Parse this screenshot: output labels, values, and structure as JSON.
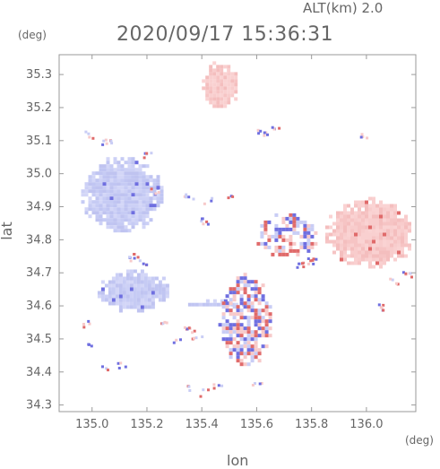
{
  "header": {
    "alt_label": "ALT(km) 2.0",
    "timestamp": "2020/09/17 15:36:31"
  },
  "chart_data": {
    "type": "heatmap",
    "title": "2020/09/17 15:36:31",
    "subtitle": "ALT(km) 2.0",
    "xlabel": "lon",
    "ylabel": "lat",
    "x_unit": "(deg)",
    "y_unit": "(deg)",
    "xlim": [
      134.88,
      136.18
    ],
    "ylim": [
      34.28,
      35.36
    ],
    "x_ticks": [
      "135.0",
      "135.2",
      "135.4",
      "135.6",
      "135.8",
      "136.0"
    ],
    "y_ticks": [
      "34.3",
      "34.4",
      "34.5",
      "34.6",
      "34.7",
      "34.8",
      "34.9",
      "35.0",
      "35.1",
      "35.2",
      "35.3"
    ],
    "grid": false,
    "colors": {
      "negative": "#c9cdf5",
      "negative_strong": "#6f6fe0",
      "positive": "#f7caca",
      "positive_strong": "#e06a6a",
      "axis": "#9a9a9a"
    },
    "regions": [
      {
        "sign": "negative",
        "lon": [
          134.96,
          135.25
        ],
        "lat": [
          34.83,
          35.05
        ]
      },
      {
        "sign": "negative",
        "lon": [
          135.02,
          135.27
        ],
        "lat": [
          34.59,
          34.71
        ]
      },
      {
        "sign": "negative",
        "lon": [
          135.35,
          135.55
        ],
        "lat": [
          34.6,
          34.62
        ]
      },
      {
        "sign": "positive",
        "lon": [
          135.4,
          135.53
        ],
        "lat": [
          35.2,
          35.34
        ]
      },
      {
        "sign": "positive",
        "lon": [
          135.85,
          136.16
        ],
        "lat": [
          34.72,
          34.93
        ]
      },
      {
        "sign": "mixed",
        "lon": [
          135.46,
          135.65
        ],
        "lat": [
          34.42,
          34.7
        ]
      },
      {
        "sign": "mixed",
        "lon": [
          135.6,
          135.82
        ],
        "lat": [
          34.75,
          34.88
        ]
      }
    ]
  }
}
